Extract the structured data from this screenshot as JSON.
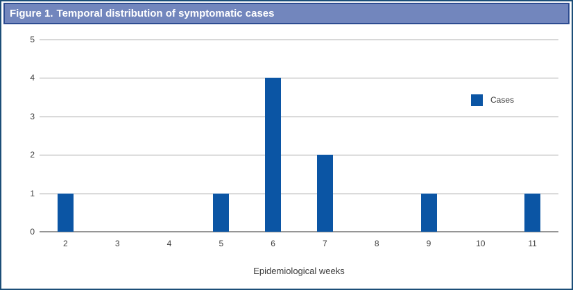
{
  "figure": {
    "title_prefix": "Figure 1.",
    "title_rest": "Temporal distribution of symptomatic cases"
  },
  "chart_data": {
    "type": "bar",
    "title": "Figure 1. Temporal distribution of symptomatic cases",
    "categories": [
      "2",
      "3",
      "4",
      "5",
      "6",
      "7",
      "8",
      "9",
      "10",
      "11"
    ],
    "series": [
      {
        "name": "Cases",
        "values": [
          1,
          0,
          0,
          1,
          4,
          2,
          0,
          1,
          0,
          1
        ]
      }
    ],
    "xlabel": "Epidemiological weeks",
    "ylabel": "",
    "ylim": [
      0,
      5
    ],
    "yticks": [
      0,
      1,
      2,
      3,
      4,
      5
    ],
    "grid": true,
    "legend": [
      "Cases"
    ],
    "legend_position": "inside-right"
  },
  "colors": {
    "bar": "#0b55a4",
    "title_bar_bg": "#7286bd",
    "title_bar_border": "#2d4c91",
    "outer_border": "#1c4e78",
    "gridline": "#a6a6a6",
    "axis_line": "#969696",
    "tick_text": "#3f3f3f"
  }
}
